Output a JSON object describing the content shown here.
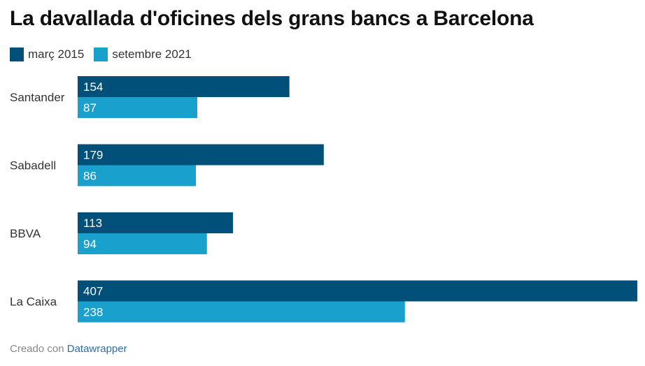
{
  "title": "La davallada d'oficines dels grans bancs a Barcelona",
  "legend": [
    {
      "label": "març 2015",
      "color": "#00507a"
    },
    {
      "label": "setembre 2021",
      "color": "#19a0cc"
    }
  ],
  "chart_data": {
    "type": "bar",
    "orientation": "horizontal",
    "categories": [
      "Santander",
      "Sabadell",
      "BBVA",
      "La Caixa"
    ],
    "series": [
      {
        "name": "març 2015",
        "values": [
          154,
          179,
          113,
          407
        ],
        "color": "#00507a"
      },
      {
        "name": "setembre 2021",
        "values": [
          87,
          86,
          94,
          238
        ],
        "color": "#19a0cc"
      }
    ],
    "xlim": [
      0,
      407
    ],
    "grid": false,
    "legend_position": "top-left",
    "data_labels": true
  },
  "footer": {
    "prefix": "Creado con",
    "link": "Datawrapper"
  }
}
